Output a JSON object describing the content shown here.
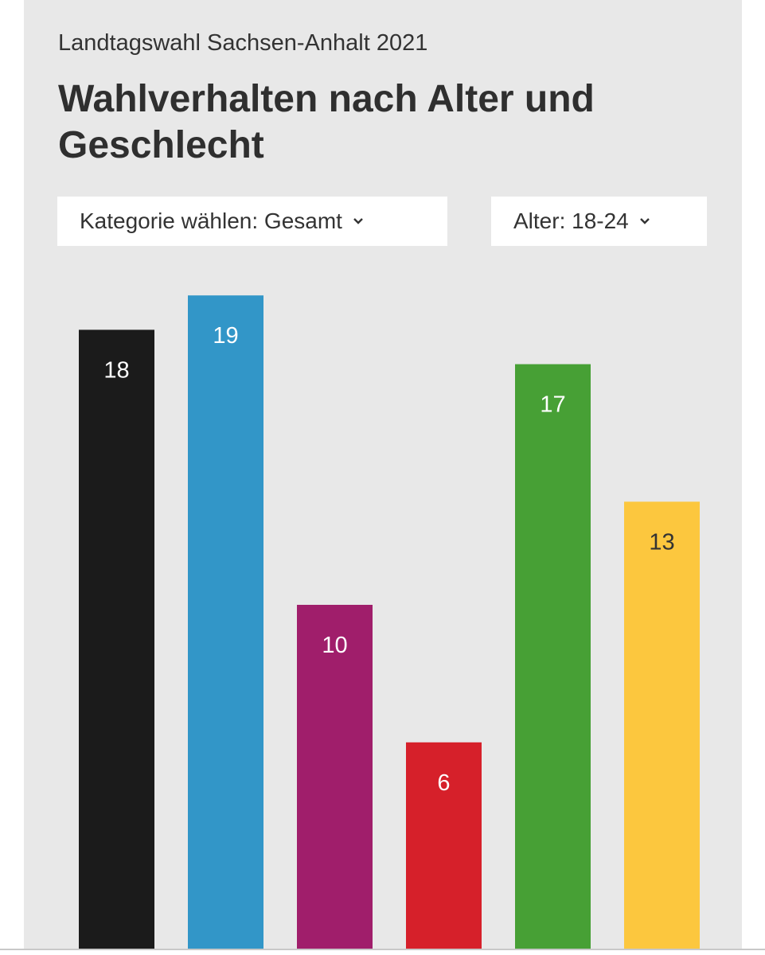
{
  "header": {
    "supertitle": "Landtagswahl Sachsen-Anhalt 2021",
    "title": "Wahlverhalten nach Alter und Geschlecht"
  },
  "controls": {
    "category_select": {
      "label": "Kategorie wählen: Gesamt",
      "icon": "chevron-down-icon"
    },
    "age_select": {
      "label": "Alter: 18-24",
      "icon": "chevron-down-icon"
    }
  },
  "chart_data": {
    "type": "bar",
    "title": "",
    "xlabel": "",
    "ylabel": "",
    "ylim": [
      0,
      21.5
    ],
    "grid": false,
    "legend": "none",
    "categories": [
      "",
      "",
      "",
      "",
      "",
      ""
    ],
    "values": [
      18,
      19,
      10,
      6,
      17,
      13
    ],
    "labels": [
      "18",
      "19",
      "10",
      "6",
      "17",
      "13"
    ],
    "colors": [
      "#1b1b1b",
      "#3296c8",
      "#a01e6b",
      "#d6202a",
      "#47a035",
      "#fcc73e"
    ],
    "label_colors": [
      "#ffffff",
      "#ffffff",
      "#ffffff",
      "#ffffff",
      "#ffffff",
      "#333333"
    ]
  }
}
